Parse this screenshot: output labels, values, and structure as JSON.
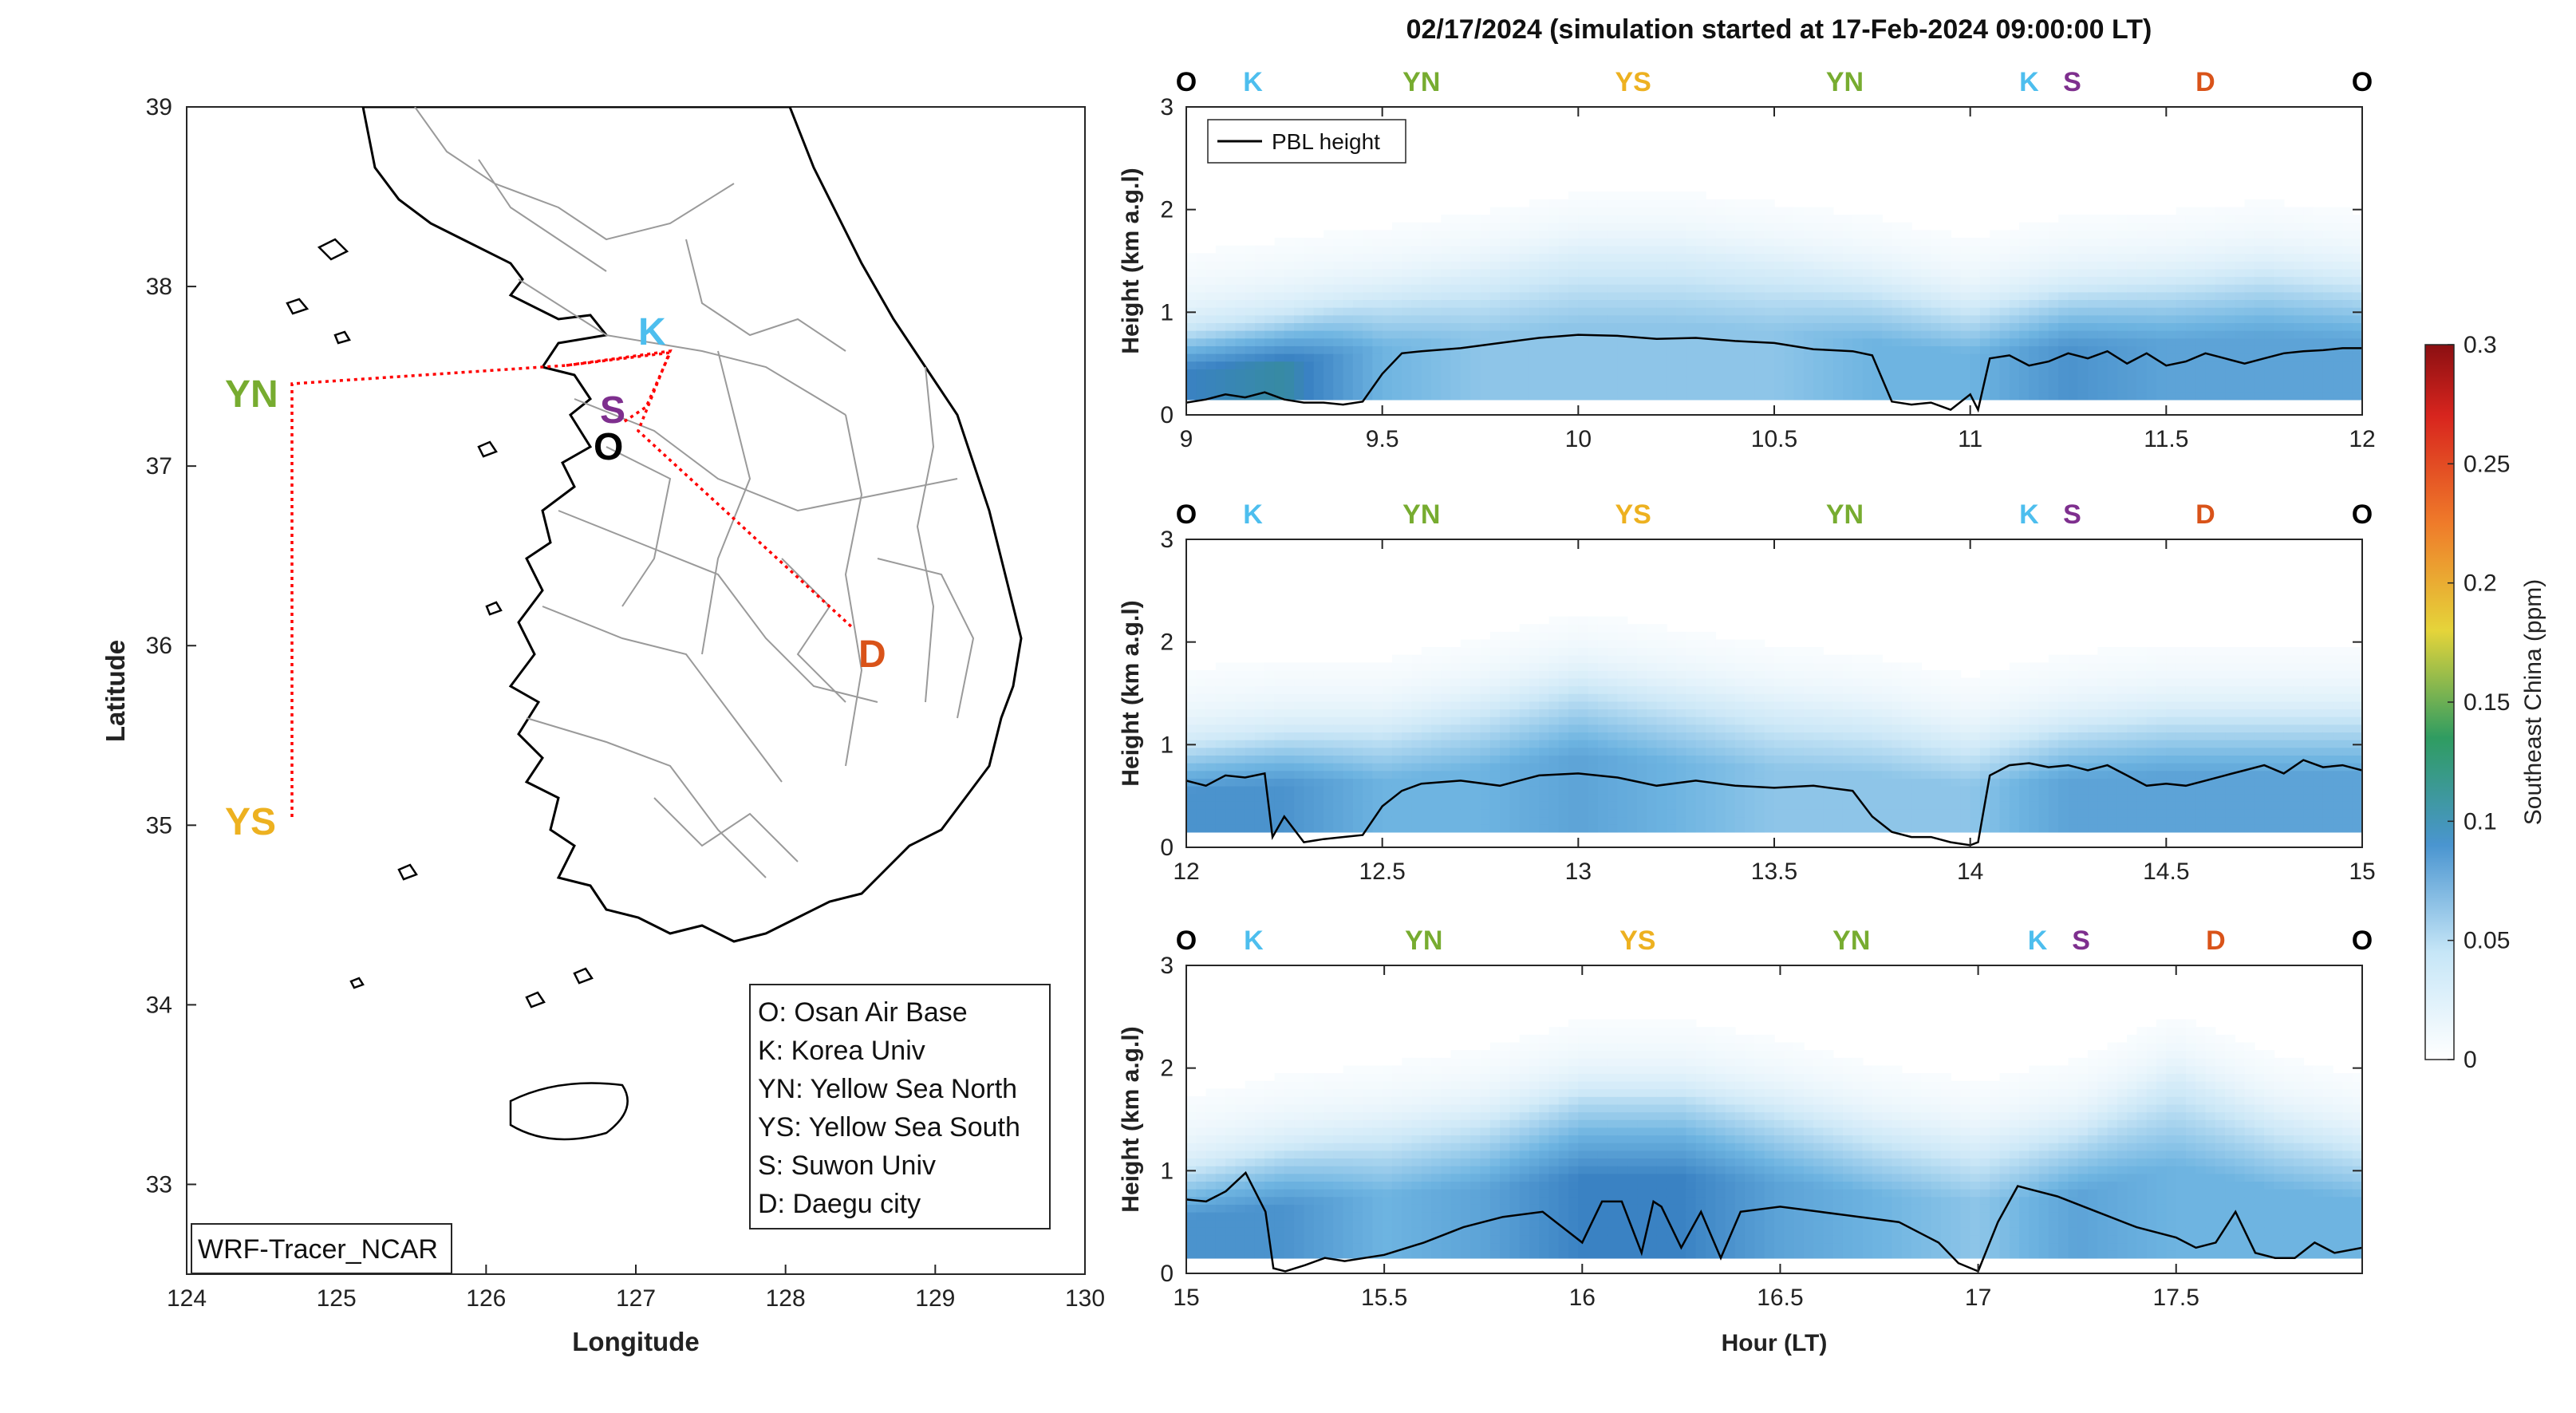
{
  "title": "02/17/2024 (simulation started at 17-Feb-2024 09:00:00 LT)",
  "map": {
    "xlabel": "Longitude",
    "ylabel": "Latitude",
    "xticks": [
      "124",
      "125",
      "126",
      "127",
      "128",
      "129",
      "130"
    ],
    "yticks": [
      "33",
      "34",
      "35",
      "36",
      "37",
      "38",
      "39"
    ],
    "model_label": "WRF-Tracer_NCAR",
    "site_labels": [
      {
        "code": "YN",
        "color": "#77ac30"
      },
      {
        "code": "YS",
        "color": "#edb120"
      },
      {
        "code": "K",
        "color": "#4dbeee"
      },
      {
        "code": "S",
        "color": "#7e2f8e"
      },
      {
        "code": "O",
        "color": "#000000"
      },
      {
        "code": "D",
        "color": "#d95319"
      }
    ],
    "legend": [
      "O: Osan Air Base",
      "K: Korea Univ",
      "YN: Yellow Sea North",
      "YS: Yellow Sea South",
      "S: Suwon Univ",
      "D: Daegu city"
    ]
  },
  "panel_ylabel": "Height (km a.g.l)",
  "panel_xlabel": "Hour (LT)",
  "pbl_legend": "PBL height",
  "colorbar": {
    "label": "Southeast China (ppm)",
    "ticks": [
      "0",
      "0.05",
      "0.1",
      "0.15",
      "0.2",
      "0.25",
      "0.3"
    ]
  },
  "chart_data": [
    {
      "type": "heatmap",
      "title": "02/17/2024 (simulation started at 17-Feb-2024 09:00:00 LT)",
      "xlim": [
        9,
        12
      ],
      "ylim": [
        0,
        3
      ],
      "xticks": [
        "9",
        "9.5",
        "10",
        "10.5",
        "11",
        "11.5",
        "12"
      ],
      "yticks": [
        "0",
        "1",
        "2",
        "3"
      ],
      "ylabel": "Height (km a.g.l)",
      "site_markers": [
        {
          "label": "O",
          "color": "#000000",
          "hour": 9.0
        },
        {
          "label": "K",
          "color": "#4dbeee",
          "hour": 9.17
        },
        {
          "label": "YN",
          "color": "#77ac30",
          "hour": 9.6
        },
        {
          "label": "YS",
          "color": "#edb120",
          "hour": 10.14
        },
        {
          "label": "YN",
          "color": "#77ac30",
          "hour": 10.68
        },
        {
          "label": "K",
          "color": "#4dbeee",
          "hour": 11.15
        },
        {
          "label": "S",
          "color": "#7e2f8e",
          "hour": 11.26
        },
        {
          "label": "D",
          "color": "#d95319",
          "hour": 11.6
        },
        {
          "label": "O",
          "color": "#000000",
          "hour": 12.0
        }
      ],
      "series": [
        {
          "name": "PBL height",
          "x": [
            9.0,
            9.05,
            9.1,
            9.15,
            9.2,
            9.25,
            9.3,
            9.35,
            9.4,
            9.45,
            9.5,
            9.55,
            9.6,
            9.7,
            9.8,
            9.9,
            10.0,
            10.1,
            10.2,
            10.3,
            10.4,
            10.5,
            10.6,
            10.7,
            10.75,
            10.8,
            10.85,
            10.9,
            10.95,
            11.0,
            11.02,
            11.05,
            11.1,
            11.15,
            11.2,
            11.25,
            11.3,
            11.35,
            11.4,
            11.45,
            11.5,
            11.55,
            11.6,
            11.65,
            11.7,
            11.75,
            11.8,
            11.85,
            11.9,
            11.95,
            12.0
          ],
          "y": [
            0.12,
            0.15,
            0.2,
            0.17,
            0.22,
            0.15,
            0.12,
            0.12,
            0.1,
            0.13,
            0.4,
            0.6,
            0.62,
            0.65,
            0.7,
            0.75,
            0.78,
            0.77,
            0.74,
            0.75,
            0.72,
            0.7,
            0.64,
            0.62,
            0.58,
            0.13,
            0.1,
            0.12,
            0.05,
            0.2,
            0.05,
            0.55,
            0.58,
            0.48,
            0.52,
            0.6,
            0.55,
            0.62,
            0.5,
            0.6,
            0.48,
            0.52,
            0.6,
            0.55,
            0.5,
            0.55,
            0.6,
            0.62,
            0.63,
            0.65,
            0.65
          ]
        }
      ],
      "concentration_ppm": {
        "hours": [
          9.0,
          9.25,
          9.5,
          9.75,
          10.0,
          10.25,
          10.5,
          10.75,
          11.0,
          11.25,
          11.5,
          11.75,
          12.0
        ],
        "surface_layer": [
          0.09,
          0.1,
          0.06,
          0.05,
          0.05,
          0.05,
          0.05,
          0.06,
          0.06,
          0.08,
          0.07,
          0.07,
          0.07
        ],
        "layer_top_km": [
          0.8,
          0.9,
          1.2,
          1.4,
          1.6,
          1.6,
          1.5,
          1.3,
          1.1,
          1.2,
          1.3,
          1.4,
          1.3
        ]
      }
    },
    {
      "type": "heatmap",
      "xlim": [
        12,
        15
      ],
      "ylim": [
        0,
        3
      ],
      "xticks": [
        "12",
        "12.5",
        "13",
        "13.5",
        "14",
        "14.5",
        "15"
      ],
      "yticks": [
        "0",
        "1",
        "2",
        "3"
      ],
      "ylabel": "Height (km a.g.l)",
      "site_markers": [
        {
          "label": "O",
          "color": "#000000",
          "hour": 12.0
        },
        {
          "label": "K",
          "color": "#4dbeee",
          "hour": 12.17
        },
        {
          "label": "YN",
          "color": "#77ac30",
          "hour": 12.6
        },
        {
          "label": "YS",
          "color": "#edb120",
          "hour": 13.14
        },
        {
          "label": "YN",
          "color": "#77ac30",
          "hour": 13.68
        },
        {
          "label": "K",
          "color": "#4dbeee",
          "hour": 14.15
        },
        {
          "label": "S",
          "color": "#7e2f8e",
          "hour": 14.26
        },
        {
          "label": "D",
          "color": "#d95319",
          "hour": 14.6
        },
        {
          "label": "O",
          "color": "#000000",
          "hour": 15.0
        }
      ],
      "series": [
        {
          "name": "PBL height",
          "x": [
            12.0,
            12.05,
            12.1,
            12.15,
            12.2,
            12.22,
            12.25,
            12.3,
            12.35,
            12.4,
            12.45,
            12.5,
            12.55,
            12.6,
            12.7,
            12.8,
            12.9,
            13.0,
            13.1,
            13.2,
            13.3,
            13.4,
            13.5,
            13.6,
            13.7,
            13.75,
            13.8,
            13.85,
            13.9,
            13.95,
            14.0,
            14.02,
            14.05,
            14.1,
            14.15,
            14.2,
            14.25,
            14.3,
            14.35,
            14.4,
            14.45,
            14.5,
            14.55,
            14.6,
            14.65,
            14.7,
            14.75,
            14.8,
            14.85,
            14.9,
            14.95,
            15.0
          ],
          "y": [
            0.65,
            0.6,
            0.7,
            0.68,
            0.72,
            0.1,
            0.3,
            0.05,
            0.08,
            0.1,
            0.12,
            0.4,
            0.55,
            0.62,
            0.65,
            0.6,
            0.7,
            0.72,
            0.68,
            0.6,
            0.65,
            0.6,
            0.58,
            0.6,
            0.55,
            0.3,
            0.15,
            0.1,
            0.1,
            0.05,
            0.02,
            0.05,
            0.7,
            0.8,
            0.82,
            0.78,
            0.8,
            0.75,
            0.8,
            0.7,
            0.6,
            0.62,
            0.6,
            0.65,
            0.7,
            0.75,
            0.8,
            0.72,
            0.85,
            0.78,
            0.8,
            0.75
          ]
        }
      ],
      "concentration_ppm": {
        "hours": [
          12.0,
          12.25,
          12.5,
          12.75,
          13.0,
          13.25,
          13.5,
          13.75,
          14.0,
          14.25,
          14.5,
          14.75,
          15.0
        ],
        "surface_layer": [
          0.08,
          0.08,
          0.06,
          0.06,
          0.07,
          0.06,
          0.05,
          0.05,
          0.05,
          0.07,
          0.07,
          0.07,
          0.07
        ],
        "layer_top_km": [
          1.0,
          1.1,
          1.2,
          1.4,
          1.6,
          1.5,
          1.4,
          1.3,
          1.1,
          1.2,
          1.3,
          1.3,
          1.3
        ]
      }
    },
    {
      "type": "heatmap",
      "xlim": [
        15,
        17.97
      ],
      "ylim": [
        0,
        3
      ],
      "xticks": [
        "15",
        "15.5",
        "16",
        "16.5",
        "17",
        "17.5"
      ],
      "yticks": [
        "0",
        "1",
        "2",
        "3"
      ],
      "xlabel": "Hour (LT)",
      "ylabel": "Height (km a.g.l)",
      "site_markers": [
        {
          "label": "O",
          "color": "#000000",
          "hour": 15.0
        },
        {
          "label": "K",
          "color": "#4dbeee",
          "hour": 15.17
        },
        {
          "label": "YN",
          "color": "#77ac30",
          "hour": 15.6
        },
        {
          "label": "YS",
          "color": "#edb120",
          "hour": 16.14
        },
        {
          "label": "YN",
          "color": "#77ac30",
          "hour": 16.68
        },
        {
          "label": "K",
          "color": "#4dbeee",
          "hour": 17.15
        },
        {
          "label": "S",
          "color": "#7e2f8e",
          "hour": 17.26
        },
        {
          "label": "D",
          "color": "#d95319",
          "hour": 17.6
        },
        {
          "label": "O",
          "color": "#000000",
          "hour": 17.97
        }
      ],
      "series": [
        {
          "name": "PBL height",
          "x": [
            15.0,
            15.05,
            15.1,
            15.15,
            15.2,
            15.22,
            15.25,
            15.3,
            15.35,
            15.4,
            15.5,
            15.6,
            15.7,
            15.8,
            15.9,
            16.0,
            16.05,
            16.1,
            16.15,
            16.18,
            16.2,
            16.25,
            16.3,
            16.35,
            16.4,
            16.5,
            16.6,
            16.7,
            16.8,
            16.9,
            16.95,
            17.0,
            17.05,
            17.1,
            17.15,
            17.2,
            17.3,
            17.4,
            17.5,
            17.55,
            17.6,
            17.65,
            17.7,
            17.75,
            17.8,
            17.85,
            17.9,
            17.97
          ],
          "y": [
            0.72,
            0.7,
            0.8,
            0.98,
            0.6,
            0.05,
            0.02,
            0.08,
            0.15,
            0.12,
            0.18,
            0.3,
            0.45,
            0.55,
            0.6,
            0.3,
            0.7,
            0.7,
            0.2,
            0.7,
            0.65,
            0.25,
            0.6,
            0.15,
            0.6,
            0.65,
            0.6,
            0.55,
            0.5,
            0.3,
            0.1,
            0.02,
            0.5,
            0.85,
            0.8,
            0.75,
            0.6,
            0.45,
            0.35,
            0.25,
            0.3,
            0.6,
            0.2,
            0.15,
            0.15,
            0.3,
            0.2,
            0.25
          ]
        }
      ],
      "concentration_ppm": {
        "hours": [
          15.0,
          15.25,
          15.5,
          15.75,
          16.0,
          16.25,
          16.5,
          16.75,
          17.0,
          17.25,
          17.5,
          17.75,
          17.97
        ],
        "surface_layer": [
          0.08,
          0.08,
          0.06,
          0.07,
          0.09,
          0.09,
          0.07,
          0.06,
          0.05,
          0.07,
          0.06,
          0.06,
          0.06
        ],
        "layer_top_km": [
          1.0,
          1.2,
          1.4,
          1.5,
          1.7,
          1.7,
          1.6,
          1.4,
          1.3,
          1.4,
          1.9,
          1.5,
          1.3
        ]
      }
    }
  ]
}
